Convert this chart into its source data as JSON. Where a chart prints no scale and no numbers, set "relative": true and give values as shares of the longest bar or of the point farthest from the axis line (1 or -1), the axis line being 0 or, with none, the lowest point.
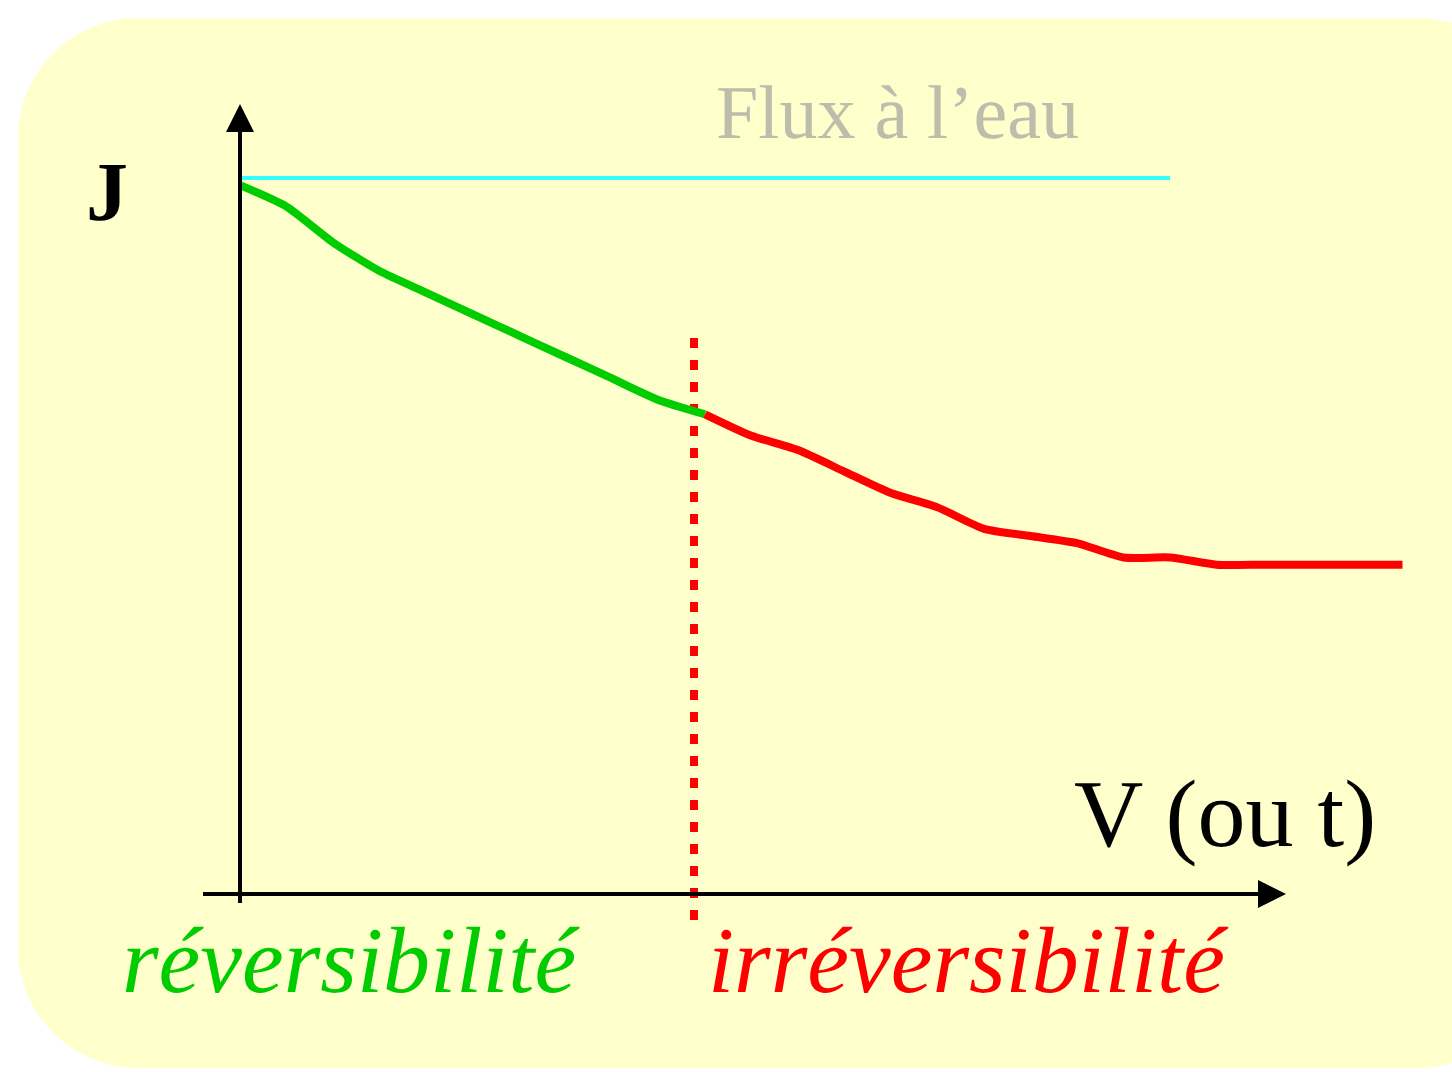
{
  "chart_data": {
    "type": "line",
    "relative": true,
    "xlabel": "V (ou t)",
    "ylabel": "J",
    "categories": [
      null,
      null,
      null,
      null,
      null,
      null,
      null,
      null,
      null,
      null,
      null,
      null,
      null,
      null,
      null,
      null,
      null,
      null,
      null,
      null,
      null,
      null,
      null,
      null,
      null,
      null
    ],
    "series": [
      {
        "name": "Flux à l’eau",
        "color": "#33ffff",
        "values": [
          1,
          1,
          1,
          1,
          1,
          1,
          1,
          1,
          1,
          1,
          1,
          1,
          1,
          1,
          1,
          1,
          1,
          1,
          1,
          1,
          1,
          null,
          null,
          null,
          null,
          null
        ]
      },
      {
        "name": "réversibilité",
        "color": "#00cc00",
        "values": [
          0.99,
          0.96,
          0.91,
          0.87,
          0.84,
          0.81,
          0.78,
          0.75,
          0.72,
          0.69,
          0.67,
          null,
          null,
          null,
          null,
          null,
          null,
          null,
          null,
          null,
          null,
          null,
          null,
          null,
          null,
          null
        ]
      },
      {
        "name": "irréversibilité",
        "color": "#ff0000",
        "values": [
          null,
          null,
          null,
          null,
          null,
          null,
          null,
          null,
          null,
          null,
          0.67,
          0.64,
          0.62,
          0.59,
          0.56,
          0.54,
          0.51,
          0.5,
          0.49,
          0.47,
          0.47,
          0.46,
          0.46,
          0.46,
          0.46,
          0.46
        ]
      }
    ],
    "legend": false,
    "marker": "none",
    "line_style": "solid"
  }
}
